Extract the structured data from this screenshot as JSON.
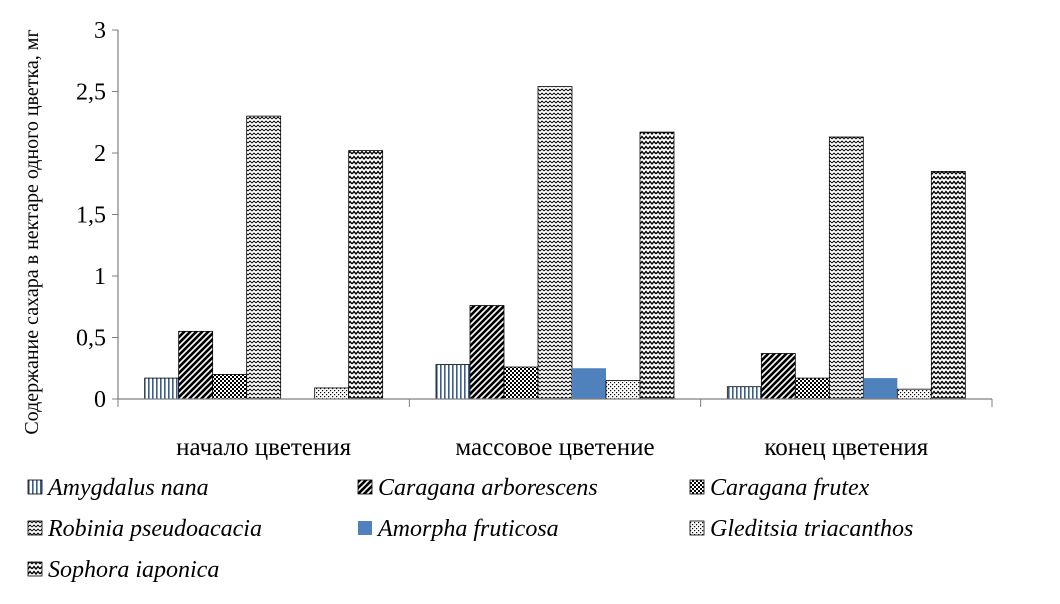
{
  "chart_data": {
    "type": "bar",
    "title": "",
    "ylabel": "Содержание сахара в нектаре одного цветка, мг",
    "xlabel": "",
    "ylim": [
      0,
      3
    ],
    "yticks": [
      "0",
      "0,5",
      "1",
      "1,5",
      "2",
      "2,5",
      "3"
    ],
    "grid": false,
    "legend_position": "bottom",
    "categories": [
      "начало цветения",
      "массовое цветение",
      "конец цветения"
    ],
    "series": [
      {
        "name": "Amygdalus nana",
        "values": [
          0.17,
          0.28,
          0.1
        ],
        "pattern": "vlines",
        "color": "#ffffff"
      },
      {
        "name": "Caragana arborescens",
        "values": [
          0.55,
          0.76,
          0.37
        ],
        "pattern": "diag",
        "color": "#ffffff"
      },
      {
        "name": "Caragana frutex",
        "values": [
          0.2,
          0.26,
          0.17
        ],
        "pattern": "checker",
        "color": "#ffffff"
      },
      {
        "name": "Robinia pseudoacacia",
        "values": [
          2.3,
          2.54,
          2.13
        ],
        "pattern": "zigzag",
        "color": "#ffffff"
      },
      {
        "name": "Amorpha fruticosa",
        "values": [
          0.0,
          0.25,
          0.17
        ],
        "pattern": "solid",
        "color": "#4f81bd"
      },
      {
        "name": "Gleditsia triacanthos",
        "values": [
          0.09,
          0.15,
          0.08
        ],
        "pattern": "dots",
        "color": "#ffffff"
      },
      {
        "name": "Sophora iaponica",
        "values": [
          2.02,
          2.17,
          1.85
        ],
        "pattern": "wave",
        "color": "#ffffff"
      }
    ]
  }
}
